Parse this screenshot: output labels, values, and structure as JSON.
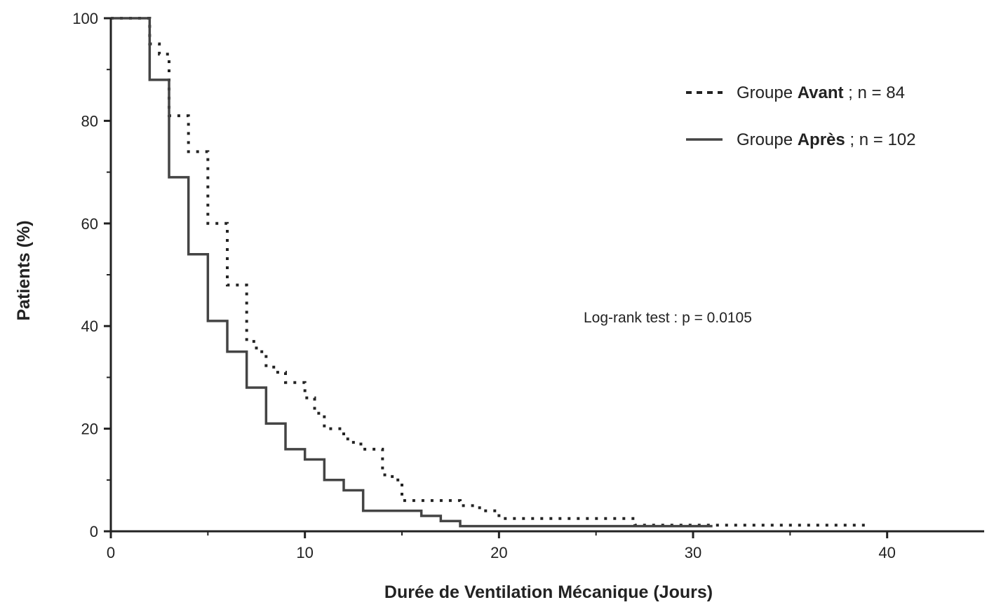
{
  "chart_data": {
    "type": "line",
    "step": true,
    "xlabel": "Durée de Ventilation Mécanique (Jours)",
    "ylabel": "Patients (%)",
    "xlim": [
      0,
      45
    ],
    "ylim": [
      0,
      100
    ],
    "x_ticks": [
      0,
      10,
      20,
      30,
      40
    ],
    "y_ticks": [
      0,
      20,
      40,
      60,
      80,
      100
    ],
    "grid": false,
    "legend_position": "top-right",
    "annotation": "Log-rank test : p = 0.0105",
    "series": [
      {
        "name": "Groupe Avant ; n = 84",
        "legend_prefix": "Groupe ",
        "legend_bold": "Avant",
        "legend_suffix": " ; n = 84",
        "style": "dotted",
        "color": "#222222",
        "x": [
          0,
          2,
          2.5,
          3,
          4,
          5,
          6,
          7,
          7.5,
          8,
          8.5,
          9,
          10,
          10.5,
          11,
          12,
          12.5,
          13,
          14,
          14.5,
          15,
          16,
          18,
          19,
          20,
          27,
          31,
          39
        ],
        "y": [
          100,
          95,
          93,
          81,
          74,
          60,
          48,
          37,
          35,
          32,
          31,
          29,
          26,
          23,
          20,
          18,
          17,
          16,
          11,
          10,
          6,
          6,
          5,
          4,
          2.5,
          1.2,
          1.2,
          1.2
        ]
      },
      {
        "name": "Groupe Après ; n = 102",
        "legend_prefix": "Groupe ",
        "legend_bold": "Après",
        "legend_suffix": " ; n = 102",
        "style": "solid",
        "color": "#444444",
        "x": [
          0,
          2,
          3,
          4,
          5,
          6,
          7,
          8,
          9,
          10,
          11,
          12,
          13,
          16,
          17,
          18,
          31
        ],
        "y": [
          100,
          88,
          69,
          54,
          41,
          35,
          28,
          21,
          16,
          14,
          10,
          8,
          4,
          3,
          2,
          1,
          1
        ]
      }
    ]
  }
}
